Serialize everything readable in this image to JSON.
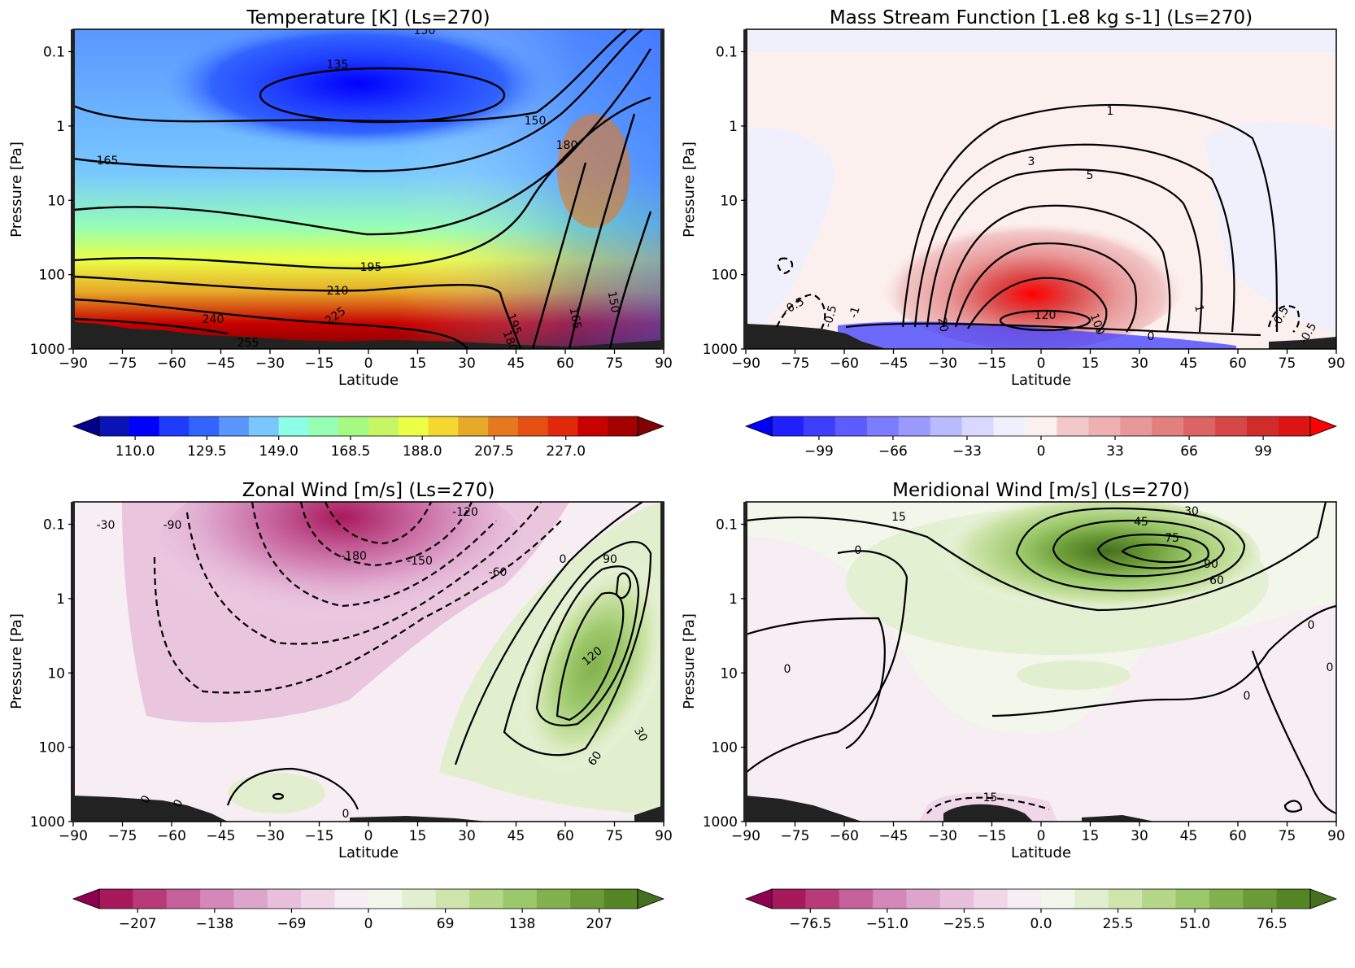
{
  "chart_data": [
    {
      "type": "heatmap",
      "title": "Temperature [K] (Ls=270)",
      "xlabel": "Latitude",
      "ylabel": "Pressure [Pa]",
      "x_ticks": [
        "−90",
        "−75",
        "−60",
        "−45",
        "−30",
        "−15",
        "0",
        "15",
        "30",
        "45",
        "60",
        "75",
        "90"
      ],
      "y_ticks": [
        "0.1",
        "1",
        "10",
        "100",
        "1000"
      ],
      "xlim": [
        -90,
        90
      ],
      "ylim": [
        1000,
        0.05
      ],
      "y_scale": "log",
      "cmap": [
        "#00008b",
        "#0a14b4",
        "#0000ff",
        "#1e3cff",
        "#3264ff",
        "#5a96ff",
        "#78c8ff",
        "#8cffe6",
        "#96ffb4",
        "#a5fa82",
        "#c8f564",
        "#ebff46",
        "#f5d732",
        "#e6aa28",
        "#e6781e",
        "#e65014",
        "#e1280a",
        "#c80000",
        "#a50000",
        "#820000"
      ],
      "colorbar_ticks": [
        "110.0",
        "129.5",
        "149.0",
        "168.5",
        "188.0",
        "207.5",
        "227.0"
      ],
      "colorbar_range": [
        100.25,
        246.5
      ],
      "contour_labels": [
        "150",
        "135",
        "150",
        "165",
        "180",
        "195",
        "210",
        "225",
        "240",
        "255",
        "195",
        "180",
        "165",
        "150"
      ],
      "field_estimate": {
        "description": "temperature in K estimated at selected latitude / pressure points",
        "lat": [
          -90,
          -45,
          0,
          45,
          90
        ],
        "pressure": [
          0.1,
          1,
          10,
          100,
          700
        ],
        "values": [
          [
            148,
            140,
            128,
            150,
            165
          ],
          [
            160,
            158,
            150,
            175,
            190
          ],
          [
            175,
            178,
            180,
            195,
            185
          ],
          [
            215,
            205,
            200,
            190,
            140
          ],
          [
            245,
            235,
            225,
            200,
            150
          ]
        ]
      }
    },
    {
      "type": "heatmap",
      "title": "Mass Stream Function [1.e8 kg s-1] (Ls=270)",
      "xlabel": "Latitude",
      "ylabel": "Pressure [Pa]",
      "x_ticks": [
        "−90",
        "−75",
        "−60",
        "−45",
        "−30",
        "−15",
        "0",
        "15",
        "30",
        "45",
        "60",
        "75",
        "90"
      ],
      "y_ticks": [
        "0.1",
        "1",
        "10",
        "100",
        "1000"
      ],
      "xlim": [
        -90,
        90
      ],
      "ylim": [
        1000,
        0.05
      ],
      "y_scale": "log",
      "cmap": [
        "#0000ff",
        "#1f1fff",
        "#3e3eff",
        "#5d5dff",
        "#7c7cff",
        "#9b9bff",
        "#babaff",
        "#d9d9ff",
        "#f0f0fc",
        "#fcf0ee",
        "#f2c8c8",
        "#eeb0b0",
        "#e89898",
        "#e28080",
        "#dc6464",
        "#d64848",
        "#d02c2c",
        "#dc1414",
        "#ff0000"
      ],
      "colorbar_ticks": [
        "−99",
        "−66",
        "−33",
        "0",
        "33",
        "66",
        "99"
      ],
      "colorbar_range": [
        -120,
        120
      ],
      "contour_labels": [
        "1",
        "3",
        "5",
        "120",
        "100",
        "20",
        "0",
        "-0.5",
        "-0.5",
        "-1",
        "1",
        "-0.5",
        "-0.5"
      ],
      "field_estimate": {
        "description": "stream function in 1e8 kg/s estimated at selected latitude / pressure points",
        "lat": [
          -90,
          -45,
          0,
          45,
          90
        ],
        "pressure": [
          0.1,
          1,
          10,
          100,
          300
        ],
        "values": [
          [
            0,
            0,
            0,
            0,
            0
          ],
          [
            -0.2,
            0.5,
            1.5,
            0.5,
            -0.2
          ],
          [
            0,
            1,
            6,
            2,
            0
          ],
          [
            -0.5,
            1,
            60,
            20,
            -0.5
          ],
          [
            -1,
            2,
            120,
            30,
            -0.5
          ]
        ]
      }
    },
    {
      "type": "heatmap",
      "title": "Zonal Wind [m/s] (Ls=270)",
      "xlabel": "Latitude",
      "ylabel": "Pressure [Pa]",
      "x_ticks": [
        "−90",
        "−75",
        "−60",
        "−45",
        "−30",
        "−15",
        "0",
        "15",
        "30",
        "45",
        "60",
        "75",
        "90"
      ],
      "y_ticks": [
        "0.1",
        "1",
        "10",
        "100",
        "1000"
      ],
      "xlim": [
        -90,
        90
      ],
      "ylim": [
        1000,
        0.05
      ],
      "y_scale": "log",
      "cmap": [
        "#8e0152",
        "#a8195c",
        "#b83a79",
        "#c5609a",
        "#d487b8",
        "#dea5cc",
        "#e8c0dc",
        "#f1d8e9",
        "#f6eef2",
        "#f2f6eb",
        "#e2efcf",
        "#cee5ab",
        "#b5d788",
        "#9bc86a",
        "#82b14d",
        "#6a9b37",
        "#558626",
        "#466f1f"
      ],
      "colorbar_ticks": [
        "−207",
        "−138",
        "−69",
        "0",
        "69",
        "138",
        "207"
      ],
      "colorbar_range": [
        -241.5,
        241.5
      ],
      "contour_labels": [
        "-30",
        "-90",
        "-120",
        "-180",
        "-150",
        "-60",
        "0",
        "90",
        "120",
        "60",
        "30",
        "0",
        "0",
        "0"
      ],
      "field_estimate": {
        "description": "zonal wind in m/s estimated at selected latitude / pressure points",
        "lat": [
          -90,
          -45,
          0,
          45,
          75
        ],
        "pressure": [
          0.1,
          1,
          10,
          100,
          600
        ],
        "values": [
          [
            -30,
            -120,
            -200,
            -90,
            60
          ],
          [
            -20,
            -100,
            -150,
            20,
            150
          ],
          [
            -10,
            -60,
            -80,
            60,
            130
          ],
          [
            0,
            -10,
            -10,
            30,
            50
          ],
          [
            0,
            5,
            5,
            10,
            10
          ]
        ]
      }
    },
    {
      "type": "heatmap",
      "title": "Meridional Wind [m/s] (Ls=270)",
      "xlabel": "Latitude",
      "ylabel": "Pressure [Pa]",
      "x_ticks": [
        "−90",
        "−75",
        "−60",
        "−45",
        "−30",
        "−15",
        "0",
        "15",
        "30",
        "45",
        "60",
        "75",
        "90"
      ],
      "y_ticks": [
        "0.1",
        "1",
        "10",
        "100",
        "1000"
      ],
      "xlim": [
        -90,
        90
      ],
      "ylim": [
        1000,
        0.05
      ],
      "y_scale": "log",
      "cmap": [
        "#8e0152",
        "#a8195c",
        "#b83a79",
        "#c5609a",
        "#d487b8",
        "#dea5cc",
        "#e8c0dc",
        "#f1d8e9",
        "#f6eef2",
        "#f2f6eb",
        "#e2efcf",
        "#cee5ab",
        "#b5d788",
        "#9bc86a",
        "#82b14d",
        "#6a9b37",
        "#558626",
        "#466f1f"
      ],
      "colorbar_ticks": [
        "−76.5",
        "−51.0",
        "−25.5",
        "0.0",
        "25.5",
        "51.0",
        "76.5"
      ],
      "colorbar_range": [
        -89.25,
        89.25
      ],
      "contour_labels": [
        "15",
        "30",
        "45",
        "75",
        "90",
        "60",
        "0",
        "0",
        "0",
        "0",
        "0",
        "-15"
      ],
      "field_estimate": {
        "description": "meridional wind in m/s estimated at selected latitude / pressure points",
        "lat": [
          -90,
          -45,
          0,
          45,
          90
        ],
        "pressure": [
          0.1,
          0.3,
          1,
          10,
          100
        ],
        "values": [
          [
            5,
            10,
            30,
            45,
            20
          ],
          [
            2,
            5,
            40,
            95,
            30
          ],
          [
            0,
            2,
            15,
            30,
            10
          ],
          [
            0,
            0,
            5,
            8,
            0
          ],
          [
            0,
            0,
            2,
            3,
            0
          ]
        ]
      }
    }
  ]
}
